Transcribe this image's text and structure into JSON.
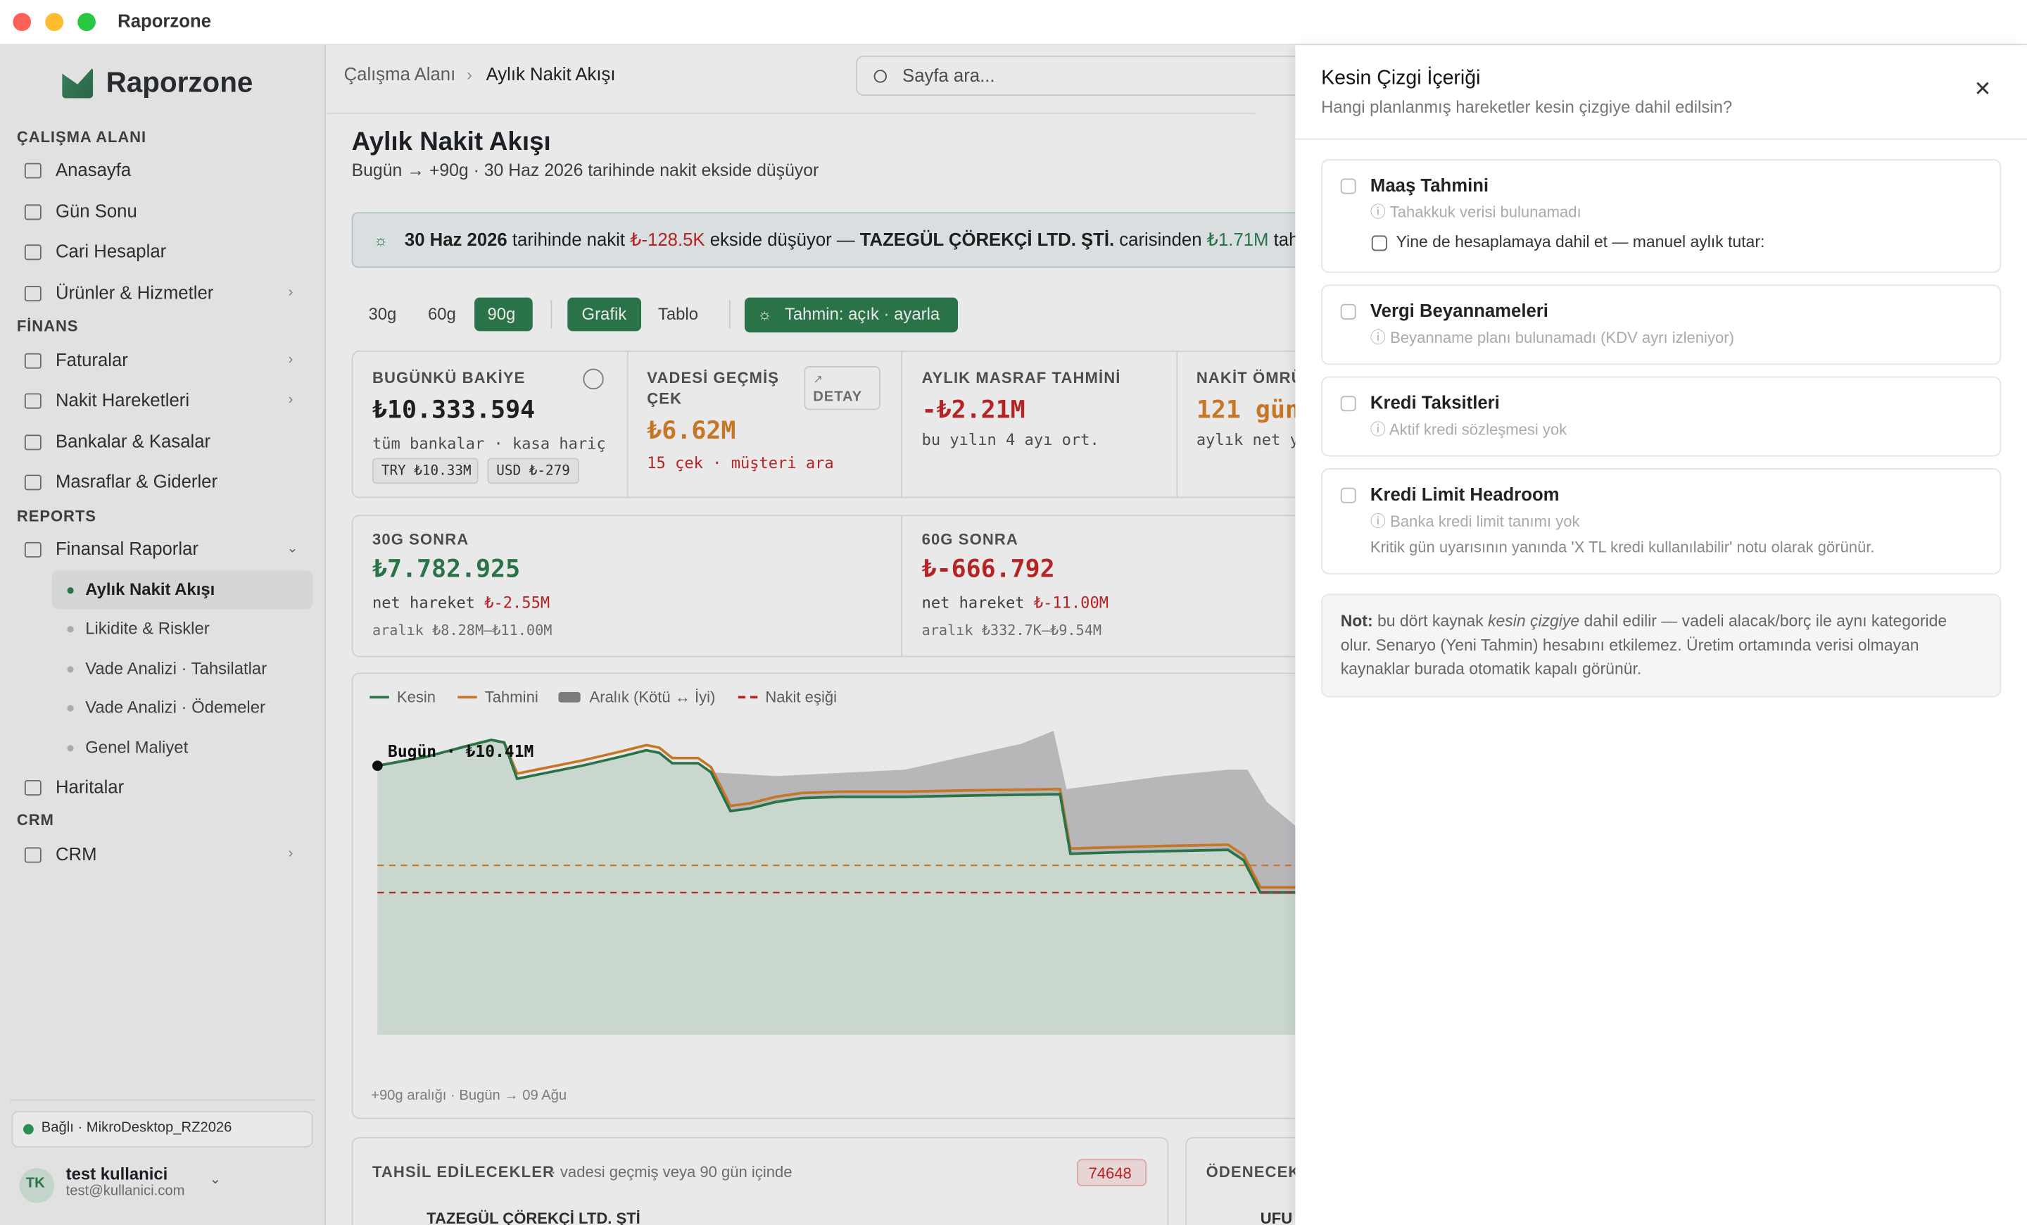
{
  "window": {
    "title": "Raporzone"
  },
  "sidebar": {
    "brand": "Raporzone",
    "sections": [
      {
        "title": "ÇALIŞMA ALANI",
        "items": [
          "Anasayfa",
          "Gün Sonu",
          "Cari Hesaplar",
          "Ürünler & Hizmetler"
        ]
      },
      {
        "title": "FİNANS",
        "items": [
          "Faturalar",
          "Nakit Hareketleri",
          "Bankalar & Kasalar",
          "Masraflar & Giderler"
        ]
      },
      {
        "title": "REPORTS",
        "items": [
          "Finansal Raporlar",
          "Haritalar"
        ],
        "subitems": [
          "Aylık Nakit Akışı",
          "Likidite & Riskler",
          "Vade Analizi · Tahsilatlar",
          "Vade Analizi · Ödemeler",
          "Genel Maliyet"
        ]
      },
      {
        "title": "CRM",
        "items": [
          "CRM"
        ]
      }
    ],
    "connection": "Bağlı · MikroDesktop_RZ2026",
    "user": {
      "initials": "TK",
      "name": "test kullanici",
      "email": "test@kullanici.com"
    }
  },
  "topbar": {
    "breadcrumb": [
      "Çalışma Alanı",
      "Aylık Nakit Akışı"
    ],
    "search": "Sayfa ara..."
  },
  "page": {
    "title": "Aylık Nakit Akışı",
    "subtitle": "Bugün → +90g · 30 Haz 2026 tarihinde nakit ekside düşüyor",
    "alert": [
      {
        "text": "30 Haz 2026",
        "style": "bold"
      },
      {
        "text": " tarihinde nakit "
      },
      {
        "text": "₺-128.5K",
        "style": "red"
      },
      {
        "text": " ekside düşüyor — "
      },
      {
        "text": "TAZEGÜL ÇÖREKÇİ LTD. ŞTİ.",
        "style": "bold"
      },
      {
        "text": " carisinden "
      },
      {
        "text": "₺1.71M",
        "style": "green"
      },
      {
        "text": " tahsila"
      }
    ],
    "ranges": [
      "30g",
      "60g",
      "90g"
    ],
    "views": [
      "Grafik",
      "Tablo"
    ],
    "forecast": "Tahmin: açık · ayarla",
    "cards": [
      {
        "label": "BUGÜNKÜ BAKİYE",
        "value": "₺10.333.594",
        "sub": "tüm bankalar · kasa hariç",
        "chips": [
          "TRY ₺10.33M",
          "USD ₺-279"
        ]
      },
      {
        "label": "VADESİ GEÇMİŞ ÇEK",
        "value": "₺6.62M",
        "sub": "15 çek · müşteri ara",
        "button": "DETAY"
      },
      {
        "label": "AYLIK MASRAF TAHMİNİ",
        "value": "-₺2.21M",
        "sub": "bu yılın 4 ayı ort."
      },
      {
        "label": "NAKİT ÖMRÜ",
        "value": "121 gün",
        "sub": "aylık net y"
      }
    ],
    "later": [
      {
        "label": "30G SONRA",
        "value": "₺7.782.925",
        "net": "net hareket ",
        "net_value": "₺-2.55M",
        "range": "aralık ₺8.28M–₺11.00M"
      },
      {
        "label": "60G SONRA",
        "value": "₺-666.792",
        "net": "net hareket ",
        "net_value": "₺-11.00M",
        "range": "aralık ₺332.7K–₺9.54M"
      }
    ],
    "chart": {
      "legend": [
        "Kesin",
        "Tahmini",
        "Aralık (Kötü ↔ İyi)",
        "Nakit eşiği"
      ],
      "today_label": "Bugün · ₺10.41M",
      "footer": "+90g aralığı · Bugün → 09 Ağu"
    },
    "collect": {
      "title": "TAHSİL EDİLECEKLER",
      "subtitle": "· vadesi geçmiş veya 90 gün içinde",
      "badge": "74648",
      "first_row": "TAZEGÜL ÇÖREKÇİ LTD. ŞTİ"
    },
    "pay": {
      "title": "ÖDENECEK",
      "first_row": "UFU"
    }
  },
  "drawer": {
    "title": "Kesin Çizgi İçeriği",
    "subtitle": "Hangi planlanmış hareketler kesin çizgiye dahil edilsin?",
    "options": [
      {
        "label": "Maaş Tahmini",
        "note": "ⓘ Tahakkuk verisi bulunamadı",
        "extra": "Yine de hesaplamaya dahil et — manuel aylık tutar:"
      },
      {
        "label": "Vergi Beyannameleri",
        "note": "ⓘ Beyanname planı bulunamadı (KDV ayrı izleniyor)"
      },
      {
        "label": "Kredi Taksitleri",
        "note": "ⓘ Aktif kredi sözleşmesi yok"
      },
      {
        "label": "Kredi Limit Headroom",
        "note": "ⓘ Banka kredi limit tanımı yok",
        "hint": "Kritik gün uyarısının yanında 'X TL kredi kullanılabilir' notu olarak görünür."
      }
    ],
    "note": [
      {
        "text": "Not:",
        "style": "bold"
      },
      {
        "text": " bu dört kaynak "
      },
      {
        "text": "kesin çizgiye",
        "style": "italic"
      },
      {
        "text": " dahil edilir — vadeli alacak/borç ile aynı kategoride olur. Senaryo (Yeni Tahmin) hesabını etkilemez. Üretim ortamında verisi olmayan kaynaklar burada otomatik kapalı görünür."
      }
    ]
  }
}
